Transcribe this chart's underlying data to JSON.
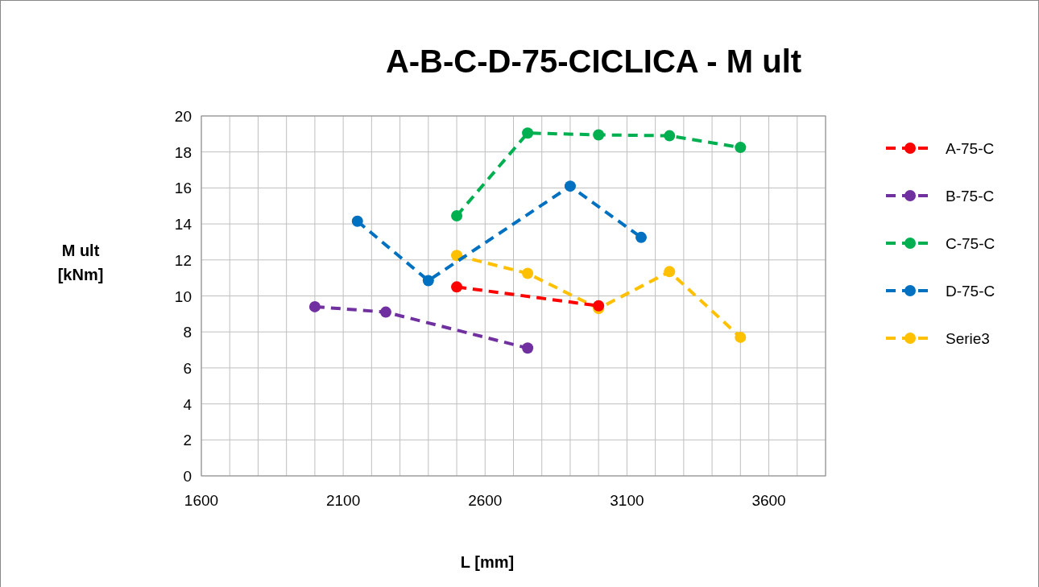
{
  "chart_data": {
    "type": "line",
    "title": "A-B-C-D-75-CICLICA - M ult",
    "xlabel": "L [mm]",
    "ylabel": "M ult [kNm]",
    "xlim": [
      1600,
      3800
    ],
    "xticks": [
      1600,
      {
        "value": 1700,
        "label": null
      },
      {
        "value": 1800,
        "label": null
      },
      {
        "value": 1900,
        "label": null
      },
      {
        "value": 2000,
        "label": null
      },
      2100,
      {
        "value": 2200,
        "label": null
      },
      {
        "value": 2300,
        "label": null
      },
      {
        "value": 2400,
        "label": null
      },
      {
        "value": 2500,
        "label": null
      },
      2600,
      {
        "value": 2700,
        "label": null
      },
      {
        "value": 2800,
        "label": null
      },
      {
        "value": 2900,
        "label": null
      },
      {
        "value": 3000,
        "label": null
      },
      3100,
      {
        "value": 3200,
        "label": null
      },
      {
        "value": 3300,
        "label": null
      },
      {
        "value": 3400,
        "label": null
      },
      {
        "value": 3500,
        "label": null
      },
      3600,
      {
        "value": 3700,
        "label": null
      },
      {
        "value": 3800,
        "label": null
      }
    ],
    "ylim": [
      0,
      20
    ],
    "yticks": [
      0,
      2,
      4,
      6,
      8,
      10,
      12,
      14,
      16,
      18,
      20
    ],
    "grid": true,
    "legend": "right",
    "marker": "circle",
    "line_style": "dashed",
    "series": [
      {
        "name": "A-75-C",
        "color": "#ff0000",
        "x": [
          2500,
          3000
        ],
        "values": [
          10.5,
          9.45
        ]
      },
      {
        "name": "B-75-C",
        "color": "#7030a0",
        "x": [
          2000,
          2250,
          2750
        ],
        "values": [
          9.4,
          9.1,
          7.1
        ]
      },
      {
        "name": "C-75-C",
        "color": "#00b050",
        "x": [
          2500,
          2750,
          3000,
          3250,
          3500
        ],
        "values": [
          14.45,
          19.05,
          18.95,
          18.9,
          18.25
        ]
      },
      {
        "name": "D-75-C",
        "color": "#0070c0",
        "x": [
          2150,
          2400,
          2900,
          3150
        ],
        "values": [
          14.15,
          10.85,
          16.1,
          13.25
        ]
      },
      {
        "name": "Serie3",
        "color": "#ffc000",
        "x": [
          2500,
          2750,
          3000,
          3250,
          3500
        ],
        "values": [
          12.25,
          11.25,
          9.3,
          11.35,
          7.7
        ]
      }
    ]
  }
}
